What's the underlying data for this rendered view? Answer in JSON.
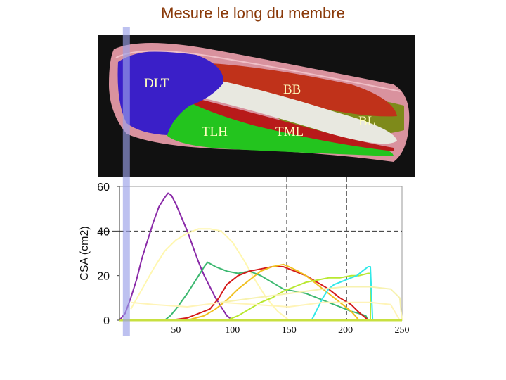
{
  "title": "Mesure le long du membre",
  "anatomy": {
    "labels": [
      "DLT",
      "BB",
      "TLH",
      "TML",
      "BL"
    ],
    "colors": {
      "DLT": "#3a1fc8",
      "BB": "#c0321a",
      "TLH": "#23c41e",
      "TML": "#b81a1a",
      "BL": "#7e8a1a",
      "bone": "#e8e8e0",
      "skin": "#e8a8b0",
      "background": "#111111"
    }
  },
  "chart_data": {
    "type": "line",
    "ylabel": "CSA (cm2)",
    "xlabel": "",
    "xlim": [
      0,
      250
    ],
    "ylim": [
      0,
      60
    ],
    "x_ticks": [
      "50",
      "100",
      "150",
      "200",
      "250"
    ],
    "y_ticks": [
      "0",
      "20",
      "40",
      "60"
    ],
    "x_tick_values": [
      50,
      100,
      150,
      200,
      250
    ],
    "y_tick_values": [
      0,
      20,
      40,
      60
    ],
    "reference_lines": {
      "horizontal_y": 40,
      "vertical_x": [
        148,
        201
      ]
    },
    "marker_x": 3,
    "series": [
      {
        "color": "#8a2aa8",
        "points": [
          [
            0,
            0
          ],
          [
            5,
            3
          ],
          [
            10,
            10
          ],
          [
            15,
            18
          ],
          [
            20,
            28
          ],
          [
            25,
            36
          ],
          [
            30,
            44
          ],
          [
            35,
            51
          ],
          [
            40,
            55
          ],
          [
            43,
            57
          ],
          [
            46,
            56
          ],
          [
            50,
            52
          ],
          [
            55,
            46
          ],
          [
            60,
            40
          ],
          [
            65,
            33
          ],
          [
            70,
            26
          ],
          [
            75,
            20
          ],
          [
            80,
            15
          ],
          [
            85,
            10
          ],
          [
            90,
            6
          ],
          [
            95,
            2
          ],
          [
            100,
            0
          ]
        ]
      },
      {
        "color": "#fff7b0",
        "points": [
          [
            10,
            5
          ],
          [
            20,
            14
          ],
          [
            30,
            23
          ],
          [
            40,
            31
          ],
          [
            50,
            36
          ],
          [
            60,
            39
          ],
          [
            70,
            41
          ],
          [
            80,
            41
          ],
          [
            90,
            40
          ],
          [
            100,
            35
          ],
          [
            110,
            27
          ],
          [
            120,
            18
          ],
          [
            130,
            10
          ],
          [
            140,
            4
          ],
          [
            150,
            0
          ]
        ]
      },
      {
        "color": "#3cb870",
        "points": [
          [
            40,
            0
          ],
          [
            45,
            2
          ],
          [
            50,
            5
          ],
          [
            60,
            12
          ],
          [
            70,
            20
          ],
          [
            75,
            24
          ],
          [
            78,
            26
          ],
          [
            85,
            24
          ],
          [
            95,
            22
          ],
          [
            105,
            21
          ],
          [
            115,
            22
          ],
          [
            125,
            20
          ],
          [
            135,
            17
          ],
          [
            145,
            14
          ],
          [
            155,
            13
          ],
          [
            165,
            12
          ],
          [
            175,
            10
          ],
          [
            185,
            8
          ],
          [
            195,
            6
          ],
          [
            205,
            4
          ],
          [
            212,
            3
          ],
          [
            218,
            2
          ],
          [
            220,
            0
          ]
        ]
      },
      {
        "color": "#d41a1a",
        "points": [
          [
            45,
            0
          ],
          [
            60,
            1
          ],
          [
            70,
            3
          ],
          [
            80,
            5
          ],
          [
            88,
            10
          ],
          [
            95,
            16
          ],
          [
            105,
            20
          ],
          [
            115,
            22
          ],
          [
            125,
            23
          ],
          [
            135,
            24
          ],
          [
            145,
            24
          ],
          [
            155,
            22
          ],
          [
            165,
            20
          ],
          [
            175,
            17
          ],
          [
            185,
            14
          ],
          [
            195,
            10
          ],
          [
            205,
            7
          ],
          [
            213,
            3
          ],
          [
            218,
            1
          ],
          [
            220,
            0
          ]
        ]
      },
      {
        "color": "#f0c020",
        "points": [
          [
            60,
            0
          ],
          [
            75,
            2
          ],
          [
            85,
            5
          ],
          [
            95,
            9
          ],
          [
            105,
            14
          ],
          [
            115,
            18
          ],
          [
            125,
            22
          ],
          [
            135,
            24
          ],
          [
            145,
            25
          ],
          [
            150,
            24
          ],
          [
            158,
            22
          ],
          [
            165,
            20
          ],
          [
            175,
            16
          ],
          [
            185,
            12
          ],
          [
            195,
            8
          ],
          [
            205,
            4
          ],
          [
            212,
            0
          ]
        ]
      },
      {
        "color": "#b8e830",
        "points": [
          [
            95,
            0
          ],
          [
            105,
            2
          ],
          [
            115,
            5
          ],
          [
            125,
            8
          ],
          [
            135,
            10
          ],
          [
            145,
            13
          ],
          [
            155,
            15
          ],
          [
            165,
            17
          ],
          [
            175,
            18
          ],
          [
            185,
            19
          ],
          [
            195,
            19
          ],
          [
            205,
            20
          ],
          [
            212,
            20
          ],
          [
            220,
            21
          ],
          [
            222,
            21
          ],
          [
            222,
            0
          ]
        ]
      },
      {
        "color": "#30e8e8",
        "points": [
          [
            170,
            0
          ],
          [
            175,
            5
          ],
          [
            180,
            10
          ],
          [
            185,
            14
          ],
          [
            190,
            16
          ],
          [
            195,
            17
          ],
          [
            200,
            18
          ],
          [
            205,
            19
          ],
          [
            210,
            20
          ],
          [
            215,
            22
          ],
          [
            220,
            24
          ],
          [
            222,
            24
          ],
          [
            224,
            0
          ]
        ]
      },
      {
        "color": "#fff4b8",
        "points": [
          [
            10,
            8
          ],
          [
            30,
            7
          ],
          [
            60,
            6
          ],
          [
            90,
            8
          ],
          [
            120,
            7
          ],
          [
            150,
            6
          ],
          [
            180,
            8
          ],
          [
            200,
            8
          ],
          [
            220,
            8
          ],
          [
            222,
            8
          ],
          [
            240,
            7
          ],
          [
            248,
            0
          ]
        ]
      },
      {
        "color": "#f7f2b0",
        "points": [
          [
            90,
            8
          ],
          [
            120,
            10
          ],
          [
            150,
            12
          ],
          [
            180,
            14
          ],
          [
            200,
            15
          ],
          [
            215,
            15
          ],
          [
            222,
            15
          ],
          [
            240,
            14
          ],
          [
            248,
            10
          ],
          [
            250,
            0
          ]
        ]
      }
    ]
  }
}
